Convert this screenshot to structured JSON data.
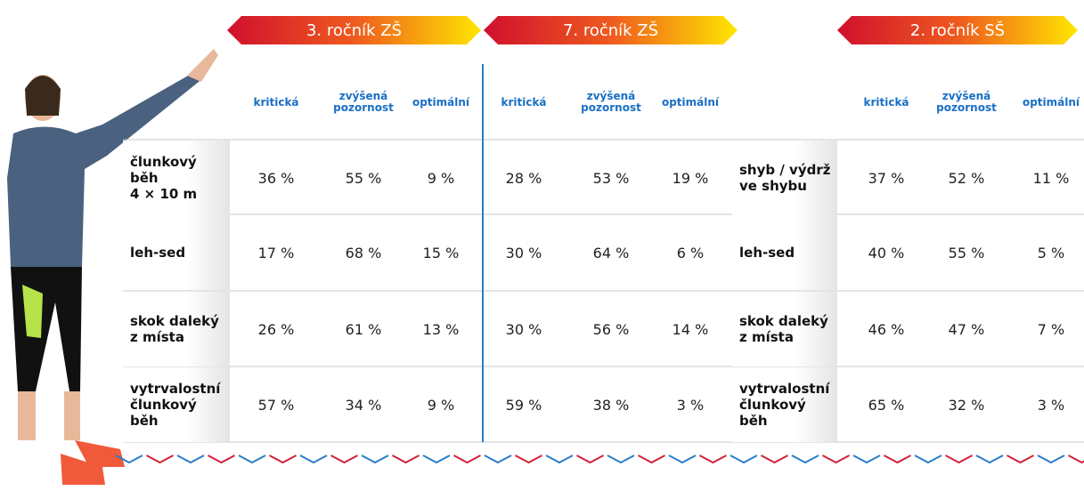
{
  "groups": [
    {
      "title": "3. ročník ZŠ",
      "columns": [
        "kritická",
        "zvýšená pozornost",
        "optimální"
      ],
      "values": [
        [
          "36 %",
          "55 %",
          "9 %"
        ],
        [
          "17 %",
          "68 %",
          "15 %"
        ],
        [
          "26 %",
          "61 %",
          "13 %"
        ],
        [
          "57 %",
          "34 %",
          "9 %"
        ]
      ]
    },
    {
      "title": "7. ročník ZŠ",
      "columns": [
        "kritická",
        "zvýšená pozornost",
        "optimální"
      ],
      "values": [
        [
          "28 %",
          "53 %",
          "19 %"
        ],
        [
          "30 %",
          "64 %",
          "6 %"
        ],
        [
          "30 %",
          "56 %",
          "14 %"
        ],
        [
          "59 %",
          "38 %",
          "3 %"
        ]
      ]
    },
    {
      "title": "2. ročník SŠ",
      "columns": [
        "kritická",
        "zvýšená pozornost",
        "optimální"
      ],
      "values": [
        [
          "37 %",
          "52 %",
          "11 %"
        ],
        [
          "40 %",
          "55 %",
          "5 %"
        ],
        [
          "46 %",
          "47 %",
          "7 %"
        ],
        [
          "65 %",
          "32 %",
          "3 %"
        ]
      ]
    }
  ],
  "row_labels": [
    "člunkový\nběh\n4 × 10 m",
    "leh-sed",
    "skok daleký\nz místa",
    "vytrvalostní\nčlunkový\nběh"
  ],
  "row_labels_ss": [
    "shyb / výdrž\nve shybu",
    "leh-sed",
    "skok daleký\nz místa",
    "vytrvalostní\nčlunkový\nběh"
  ]
}
